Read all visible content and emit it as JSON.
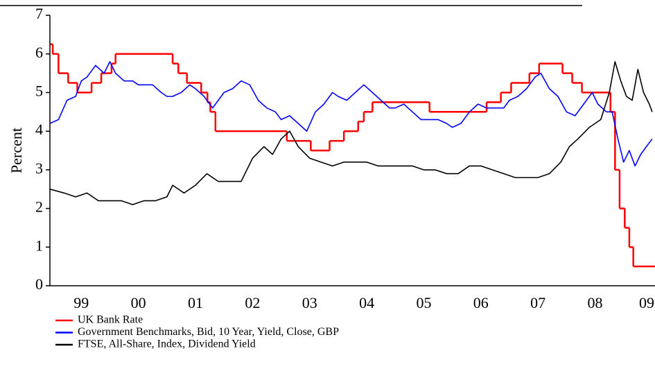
{
  "chart_data": {
    "type": "line",
    "ylabel": "Percent",
    "ylim": [
      0,
      7
    ],
    "yticks": [
      0,
      1,
      2,
      3,
      4,
      5,
      6,
      7
    ],
    "xlim": [
      1998.95,
      2009.55
    ],
    "xticks": [
      {
        "value": 1999.5,
        "label": "99"
      },
      {
        "value": 2000.5,
        "label": "00"
      },
      {
        "value": 2001.5,
        "label": "01"
      },
      {
        "value": 2002.5,
        "label": "02"
      },
      {
        "value": 2003.5,
        "label": "03"
      },
      {
        "value": 2004.5,
        "label": "04"
      },
      {
        "value": 2005.5,
        "label": "05"
      },
      {
        "value": 2006.5,
        "label": "06"
      },
      {
        "value": 2007.5,
        "label": "07"
      },
      {
        "value": 2008.5,
        "label": "08"
      },
      {
        "value": 2009.5,
        "label": "09"
      }
    ],
    "series": [
      {
        "name": "UK Bank Rate",
        "color": "#ff0000",
        "step": "post",
        "x": [
          1998.95,
          1999.0,
          1999.1,
          1999.27,
          1999.43,
          1999.68,
          1999.85,
          2000.03,
          2000.1,
          2001.1,
          2001.2,
          2001.35,
          2001.6,
          2001.71,
          2001.76,
          2001.85,
          2003.1,
          2003.52,
          2003.85,
          2004.1,
          2004.35,
          2004.45,
          2004.6,
          2005.6,
          2006.6,
          2006.85,
          2007.03,
          2007.35,
          2007.52,
          2007.93,
          2008.1,
          2008.27,
          2008.77,
          2008.85,
          2008.93,
          2009.02,
          2009.1,
          2009.17,
          2009.55
        ],
        "values": [
          6.25,
          6.0,
          5.5,
          5.25,
          5.0,
          5.25,
          5.5,
          5.75,
          6.0,
          5.75,
          5.5,
          5.25,
          5.0,
          4.75,
          4.5,
          4.0,
          3.75,
          3.5,
          3.75,
          4.0,
          4.25,
          4.5,
          4.75,
          4.5,
          4.75,
          5.0,
          5.25,
          5.5,
          5.75,
          5.5,
          5.25,
          5.0,
          4.5,
          3.0,
          2.0,
          1.5,
          1.0,
          0.5,
          0.5
        ]
      },
      {
        "name": "Government Benchmarks, Bid, 10 Year, Yield, Close, GBP",
        "color": "#0000ff",
        "x": [
          1998.95,
          1999.1,
          1999.25,
          1999.4,
          1999.5,
          1999.6,
          1999.75,
          1999.9,
          2000.0,
          2000.1,
          2000.25,
          2000.4,
          2000.5,
          2000.75,
          2000.9,
          2001.0,
          2001.1,
          2001.25,
          2001.4,
          2001.5,
          2001.65,
          2001.8,
          2001.9,
          2002.0,
          2002.15,
          2002.3,
          2002.45,
          2002.6,
          2002.75,
          2002.9,
          2003.0,
          2003.15,
          2003.3,
          2003.45,
          2003.6,
          2003.75,
          2003.9,
          2004.0,
          2004.15,
          2004.3,
          2004.45,
          2004.6,
          2004.75,
          2004.9,
          2005.0,
          2005.15,
          2005.3,
          2005.45,
          2005.6,
          2005.75,
          2005.9,
          2006.0,
          2006.15,
          2006.3,
          2006.45,
          2006.6,
          2006.75,
          2006.9,
          2007.0,
          2007.15,
          2007.3,
          2007.45,
          2007.55,
          2007.7,
          2007.85,
          2008.0,
          2008.15,
          2008.3,
          2008.45,
          2008.55,
          2008.7,
          2008.8,
          2008.9,
          2009.0,
          2009.1,
          2009.2,
          2009.3,
          2009.4,
          2009.5
        ],
        "values": [
          4.2,
          4.3,
          4.8,
          4.9,
          5.3,
          5.4,
          5.7,
          5.5,
          5.8,
          5.5,
          5.3,
          5.3,
          5.2,
          5.2,
          5.0,
          4.9,
          4.9,
          5.0,
          5.2,
          5.1,
          4.9,
          4.6,
          4.8,
          5.0,
          5.1,
          5.3,
          5.2,
          4.8,
          4.6,
          4.5,
          4.3,
          4.4,
          4.2,
          4.0,
          4.5,
          4.7,
          5.0,
          4.9,
          4.8,
          5.0,
          5.2,
          5.0,
          4.8,
          4.6,
          4.6,
          4.7,
          4.5,
          4.3,
          4.3,
          4.3,
          4.2,
          4.1,
          4.2,
          4.5,
          4.7,
          4.6,
          4.6,
          4.6,
          4.8,
          4.9,
          5.1,
          5.4,
          5.5,
          5.1,
          4.9,
          4.5,
          4.4,
          4.7,
          5.0,
          4.7,
          4.5,
          4.5,
          3.8,
          3.2,
          3.5,
          3.1,
          3.4,
          3.6,
          3.8
        ]
      },
      {
        "name": "FTSE, All-Share, Index, Dividend Yield",
        "color": "#000000",
        "x": [
          1998.95,
          1999.2,
          1999.4,
          1999.6,
          1999.8,
          2000.0,
          2000.2,
          2000.4,
          2000.6,
          2000.8,
          2001.0,
          2001.1,
          2001.3,
          2001.5,
          2001.7,
          2001.9,
          2002.1,
          2002.3,
          2002.5,
          2002.7,
          2002.85,
          2003.0,
          2003.15,
          2003.3,
          2003.5,
          2003.7,
          2003.9,
          2004.1,
          2004.3,
          2004.5,
          2004.7,
          2004.9,
          2005.1,
          2005.3,
          2005.5,
          2005.7,
          2005.9,
          2006.1,
          2006.3,
          2006.5,
          2006.7,
          2006.9,
          2007.1,
          2007.3,
          2007.5,
          2007.7,
          2007.9,
          2008.05,
          2008.2,
          2008.4,
          2008.6,
          2008.75,
          2008.85,
          2008.95,
          2009.05,
          2009.15,
          2009.25,
          2009.35,
          2009.45,
          2009.5
        ],
        "values": [
          2.5,
          2.4,
          2.3,
          2.4,
          2.2,
          2.2,
          2.2,
          2.1,
          2.2,
          2.2,
          2.3,
          2.6,
          2.4,
          2.6,
          2.9,
          2.7,
          2.7,
          2.7,
          3.3,
          3.6,
          3.4,
          3.8,
          4.0,
          3.6,
          3.3,
          3.2,
          3.1,
          3.2,
          3.2,
          3.2,
          3.1,
          3.1,
          3.1,
          3.1,
          3.0,
          3.0,
          2.9,
          2.9,
          3.1,
          3.1,
          3.0,
          2.9,
          2.8,
          2.8,
          2.8,
          2.9,
          3.2,
          3.6,
          3.8,
          4.1,
          4.3,
          5.0,
          5.8,
          5.3,
          4.9,
          4.8,
          5.6,
          5.0,
          4.7,
          4.5
        ]
      }
    ]
  }
}
